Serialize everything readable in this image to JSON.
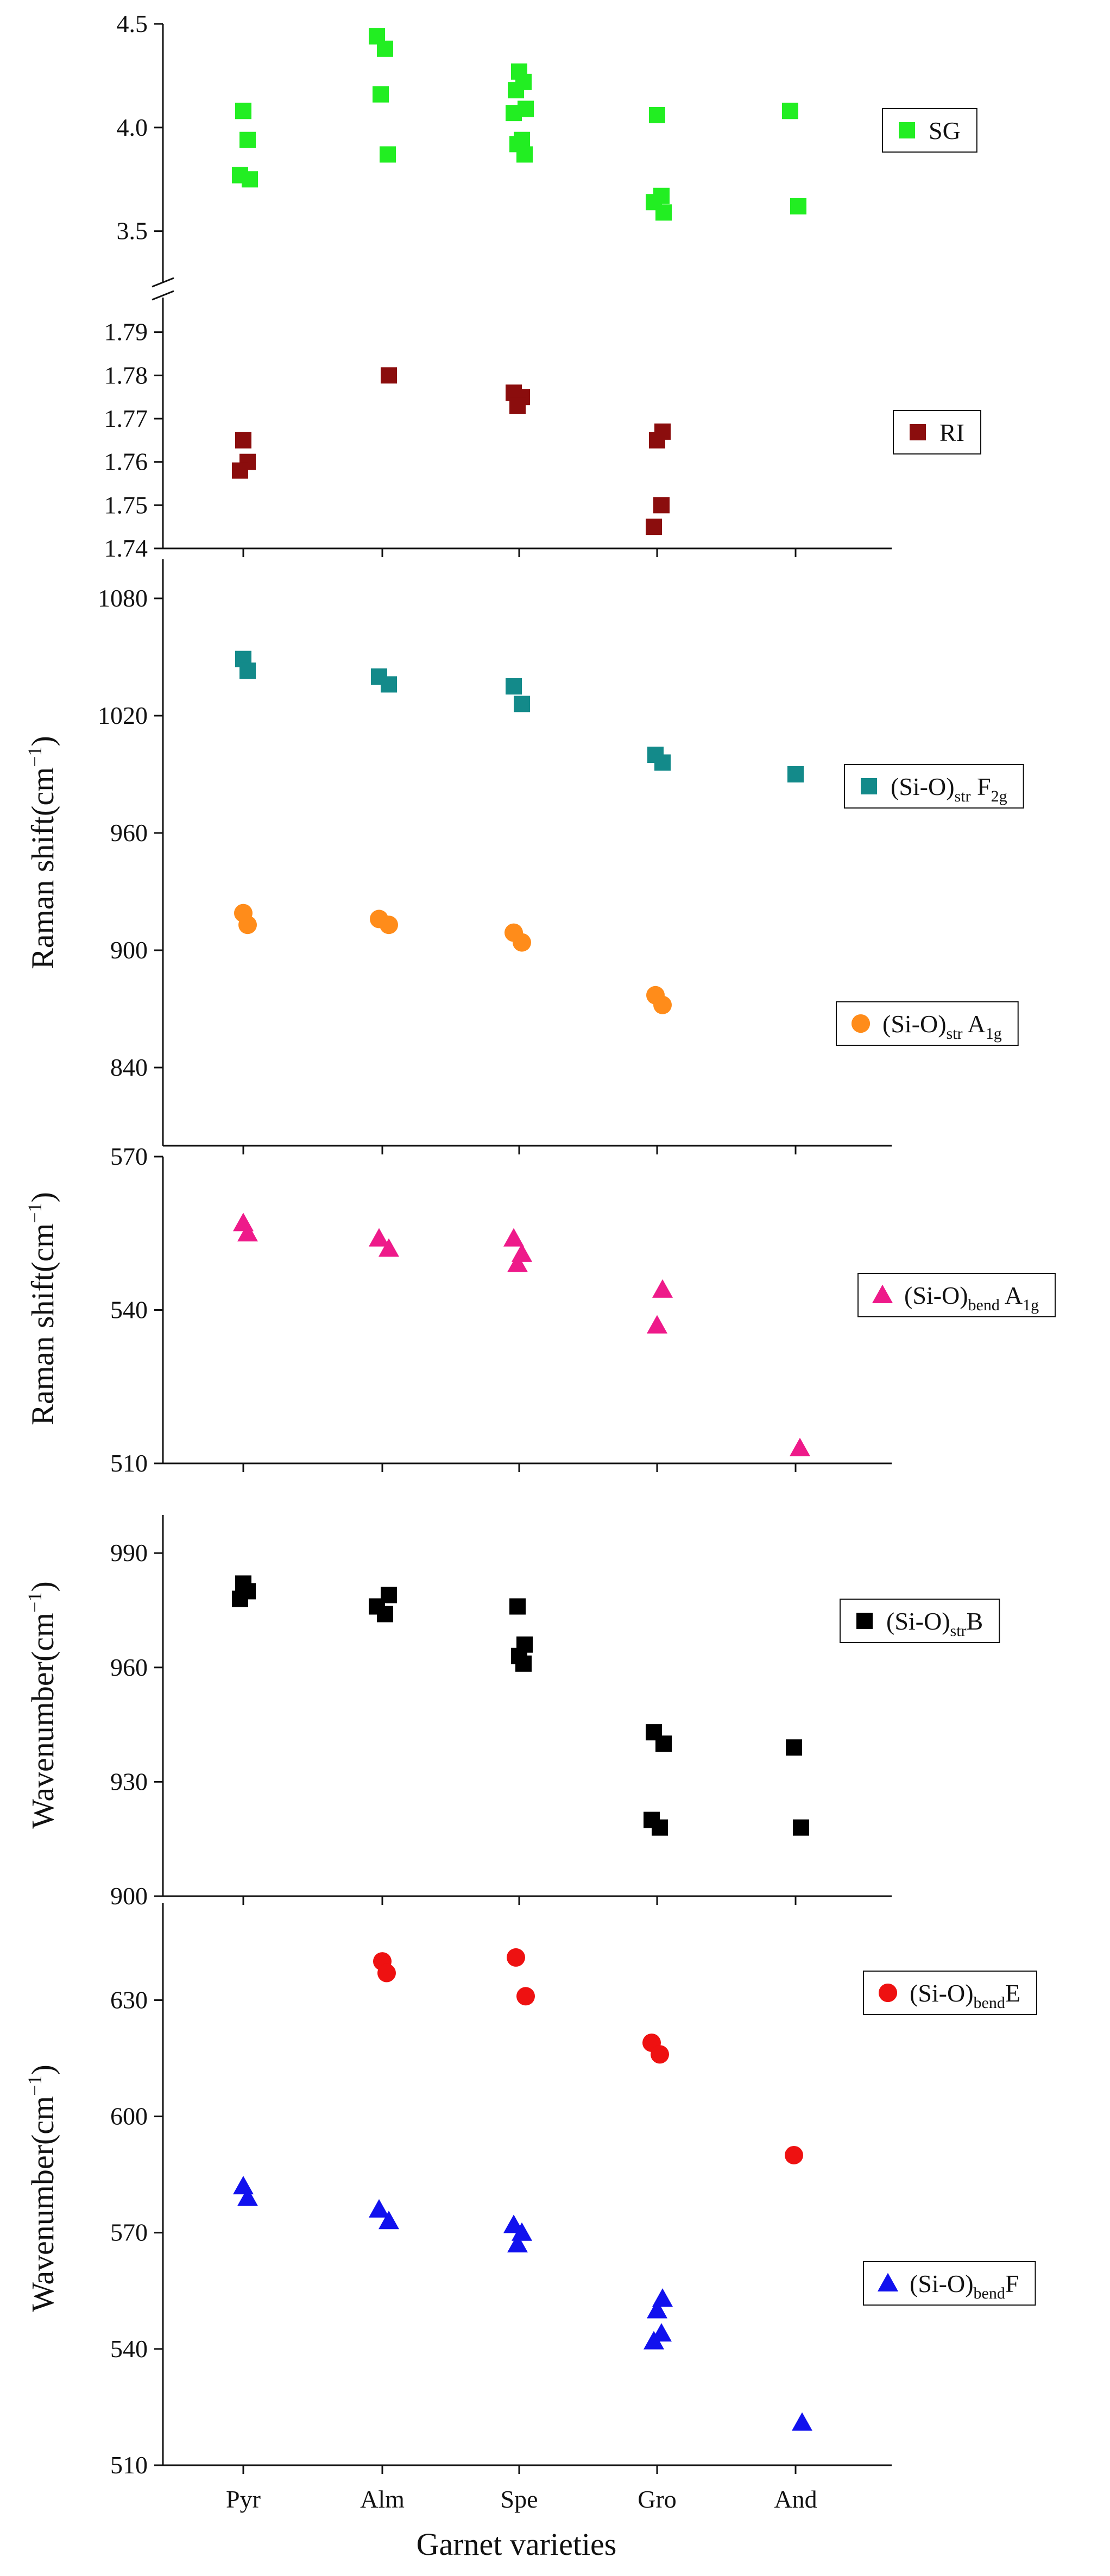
{
  "chart_data": [
    {
      "id": "sg-ri",
      "type": "scatter",
      "subplots": [
        {
          "id": "sg",
          "ylim": [
            3.3,
            4.5
          ],
          "yticks": [
            "3.5",
            "4.0",
            "4.5"
          ],
          "ytick_values": [
            3.5,
            4.0,
            4.5
          ],
          "series": [
            {
              "name": "SG",
              "marker": "square",
              "color": "#22ee22",
              "points": [
                [
                  1,
                  4.08
                ],
                [
                  1,
                  3.94
                ],
                [
                  1,
                  3.77
                ],
                [
                  1,
                  3.75
                ],
                [
                  2,
                  4.44
                ],
                [
                  2,
                  4.38
                ],
                [
                  2,
                  4.16
                ],
                [
                  2,
                  3.87
                ],
                [
                  3,
                  4.27
                ],
                [
                  3,
                  4.22
                ],
                [
                  3,
                  4.18
                ],
                [
                  3,
                  4.09
                ],
                [
                  3,
                  4.07
                ],
                [
                  3,
                  3.94
                ],
                [
                  3,
                  3.92
                ],
                [
                  3,
                  3.87
                ],
                [
                  4,
                  4.06
                ],
                [
                  4,
                  3.67
                ],
                [
                  4,
                  3.64
                ],
                [
                  4,
                  3.59
                ],
                [
                  5,
                  4.08
                ],
                [
                  5,
                  3.62
                ]
              ]
            }
          ]
        },
        {
          "id": "ri",
          "ylim": [
            1.74,
            1.8
          ],
          "yticks": [
            "1.74",
            "1.75",
            "1.76",
            "1.77",
            "1.78",
            "1.79"
          ],
          "ytick_values": [
            1.74,
            1.75,
            1.76,
            1.77,
            1.78,
            1.79
          ],
          "series": [
            {
              "name": "RI",
              "marker": "square",
              "color": "#8b0d0d",
              "points": [
                [
                  1,
                  1.765
                ],
                [
                  1,
                  1.76
                ],
                [
                  1,
                  1.758
                ],
                [
                  2,
                  1.78
                ],
                [
                  3,
                  1.776
                ],
                [
                  3,
                  1.775
                ],
                [
                  3,
                  1.773
                ],
                [
                  4,
                  1.767
                ],
                [
                  4,
                  1.765
                ],
                [
                  4,
                  1.75
                ],
                [
                  4,
                  1.745
                ]
              ]
            }
          ]
        }
      ],
      "xlim": [
        0.45,
        5.55
      ],
      "ylabel": ""
    },
    {
      "id": "raman-si-o-str",
      "type": "scatter",
      "ylabel": "Raman shift(cm⁻¹)",
      "ylim": [
        800,
        1100
      ],
      "yticks": [
        "840",
        "900",
        "960",
        "1020",
        "1080"
      ],
      "ytick_values": [
        840,
        900,
        960,
        1020,
        1080
      ],
      "xlim": [
        0.45,
        5.55
      ],
      "series": [
        {
          "name": "(Si-O)",
          "sub": "str",
          "tail": " F",
          "tail_sub": "2g",
          "marker": "square",
          "color": "#138a8a",
          "points": [
            [
              1,
              1049
            ],
            [
              1,
              1043
            ],
            [
              2,
              1040
            ],
            [
              2,
              1036
            ],
            [
              3,
              1035
            ],
            [
              3,
              1026
            ],
            [
              4,
              1000
            ],
            [
              4,
              996
            ],
            [
              5,
              990
            ]
          ]
        },
        {
          "name": "(Si-O)",
          "sub": "str",
          "tail": " A",
          "tail_sub": "1g",
          "marker": "circle",
          "color": "#ff8c1a",
          "points": [
            [
              1,
              919
            ],
            [
              1,
              913
            ],
            [
              2,
              916
            ],
            [
              2,
              913
            ],
            [
              3,
              909
            ],
            [
              3,
              904
            ],
            [
              4,
              877
            ],
            [
              4,
              872
            ]
          ]
        }
      ]
    },
    {
      "id": "raman-si-o-bend",
      "type": "scatter",
      "ylabel": "Raman shift(cm⁻¹)",
      "ylim": [
        510,
        570
      ],
      "yticks": [
        "510",
        "540",
        "570"
      ],
      "ytick_values": [
        510,
        540,
        570
      ],
      "xlim": [
        0.45,
        5.55
      ],
      "series": [
        {
          "name": "(Si-O)",
          "sub": "bend",
          "tail": " A",
          "tail_sub": "1g",
          "marker": "triangle",
          "color": "#ee1a8a",
          "points": [
            [
              1,
              557
            ],
            [
              1,
              555
            ],
            [
              2,
              554
            ],
            [
              2,
              552
            ],
            [
              3,
              554
            ],
            [
              3,
              551
            ],
            [
              3,
              549
            ],
            [
              4,
              544
            ],
            [
              4,
              537
            ],
            [
              5,
              513
            ]
          ]
        }
      ]
    },
    {
      "id": "ir-si-o-str",
      "type": "scatter",
      "ylabel": "Wavenumber(cm⁻¹)",
      "ylim": [
        900,
        1000
      ],
      "yticks": [
        "900",
        "930",
        "960",
        "990"
      ],
      "ytick_values": [
        900,
        930,
        960,
        990
      ],
      "xlim": [
        0.45,
        5.55
      ],
      "series": [
        {
          "name": "(Si-O)",
          "sub": "str",
          "tail": "B",
          "tail_sub": "",
          "marker": "square",
          "color": "#000000",
          "points": [
            [
              1,
              982
            ],
            [
              1,
              980
            ],
            [
              1,
              978
            ],
            [
              2,
              979
            ],
            [
              2,
              976
            ],
            [
              2,
              974
            ],
            [
              3,
              976
            ],
            [
              3,
              966
            ],
            [
              3,
              963
            ],
            [
              3,
              961
            ],
            [
              4,
              943
            ],
            [
              4,
              940
            ],
            [
              4,
              920
            ],
            [
              4,
              918
            ],
            [
              5,
              939
            ],
            [
              5,
              918
            ]
          ]
        }
      ]
    },
    {
      "id": "ir-si-o-bend",
      "type": "scatter",
      "ylabel": "Wavenumber(cm⁻¹)",
      "ylim": [
        510,
        655
      ],
      "yticks": [
        "510",
        "540",
        "570",
        "600",
        "630"
      ],
      "ytick_values": [
        510,
        540,
        570,
        600,
        630
      ],
      "xlim": [
        0.45,
        5.55
      ],
      "xlabel": "Garnet varieties",
      "categories": [
        "Pyr",
        "Alm",
        "Spe",
        "Gro",
        "And"
      ],
      "series": [
        {
          "name": "(Si-O)",
          "sub": "bend",
          "tail": "E",
          "tail_sub": "",
          "marker": "circle",
          "color": "#ee1111",
          "points": [
            [
              2,
              640
            ],
            [
              2,
              637
            ],
            [
              3,
              641
            ],
            [
              3,
              631
            ],
            [
              4,
              619
            ],
            [
              4,
              616
            ],
            [
              5,
              590
            ]
          ]
        },
        {
          "name": "(Si-O)",
          "sub": "bend",
          "tail": "F",
          "tail_sub": "",
          "marker": "triangle",
          "color": "#1111ee",
          "points": [
            [
              1,
              582
            ],
            [
              1,
              579
            ],
            [
              2,
              576
            ],
            [
              2,
              573
            ],
            [
              3,
              572
            ],
            [
              3,
              570
            ],
            [
              3,
              567
            ],
            [
              4,
              553
            ],
            [
              4,
              550
            ],
            [
              4,
              544
            ],
            [
              4,
              542
            ],
            [
              5,
              521
            ]
          ]
        }
      ]
    }
  ]
}
